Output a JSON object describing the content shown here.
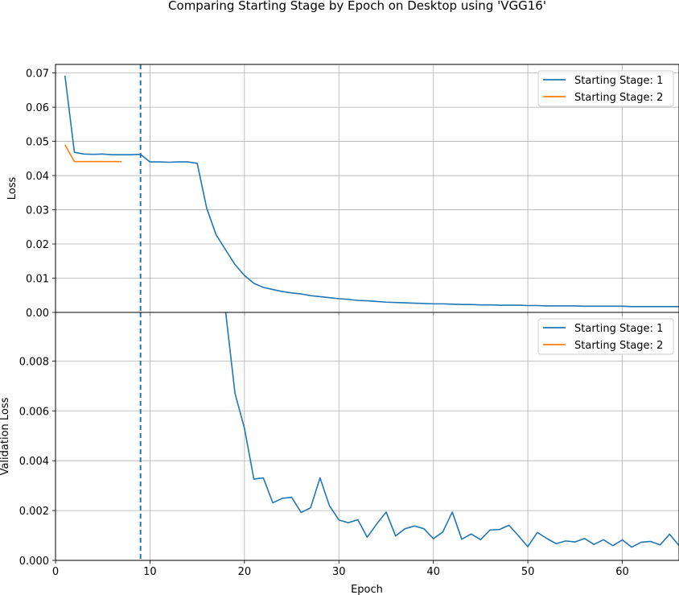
{
  "figure": {
    "title": "Comparing Starting Stage by Epoch on Desktop using 'VGG16'",
    "xlabel": "Epoch"
  },
  "colors": {
    "series1": "#1f77b4",
    "series2": "#ff7f0e",
    "grid": "#b0b0b0",
    "vline": "#1f77b4"
  },
  "chart_data": [
    {
      "type": "line",
      "panel": "top",
      "title": "",
      "xlabel": "",
      "ylabel": "Loss",
      "xlim": [
        0,
        66
      ],
      "ylim": [
        0,
        0.0725
      ],
      "xticks": [
        0,
        10,
        20,
        30,
        40,
        50,
        60
      ],
      "yticks": [
        0.0,
        0.01,
        0.02,
        0.03,
        0.04,
        0.05,
        0.06,
        0.07
      ],
      "ytick_labels": [
        "0.00",
        "0.01",
        "0.02",
        "0.03",
        "0.04",
        "0.05",
        "0.06",
        "0.07"
      ],
      "grid": true,
      "legend_position": "upper-right",
      "vline_x": 9,
      "series": [
        {
          "name": "Starting Stage: 1",
          "color": "#1f77b4",
          "x": [
            1,
            2,
            3,
            4,
            5,
            6,
            7,
            8,
            9,
            10,
            11,
            12,
            13,
            14,
            15,
            16,
            17,
            18,
            19,
            20,
            21,
            22,
            23,
            24,
            25,
            26,
            27,
            28,
            29,
            30,
            31,
            32,
            33,
            34,
            35,
            36,
            37,
            38,
            39,
            40,
            41,
            42,
            43,
            44,
            45,
            46,
            47,
            48,
            49,
            50,
            51,
            52,
            53,
            54,
            55,
            56,
            57,
            58,
            59,
            60,
            61,
            62,
            63,
            64,
            65,
            66
          ],
          "values": [
            0.0692,
            0.0468,
            0.0463,
            0.0462,
            0.0463,
            0.0461,
            0.0461,
            0.0461,
            0.0462,
            0.044,
            0.044,
            0.0439,
            0.044,
            0.044,
            0.0436,
            0.0305,
            0.0227,
            0.0183,
            0.014,
            0.0108,
            0.0085,
            0.0073,
            0.0067,
            0.0061,
            0.0057,
            0.0054,
            0.0049,
            0.0046,
            0.0043,
            0.004,
            0.0038,
            0.0035,
            0.0034,
            0.0032,
            0.003,
            0.0029,
            0.0028,
            0.0027,
            0.0026,
            0.0025,
            0.0025,
            0.0024,
            0.0023,
            0.0023,
            0.0022,
            0.0022,
            0.0021,
            0.0021,
            0.0021,
            0.002,
            0.002,
            0.0019,
            0.0019,
            0.0019,
            0.0019,
            0.0018,
            0.0018,
            0.0018,
            0.0018,
            0.0018,
            0.0017,
            0.0017,
            0.0017,
            0.0017,
            0.0017,
            0.0017
          ]
        },
        {
          "name": "Starting Stage: 2",
          "color": "#ff7f0e",
          "x": [
            1,
            2,
            3,
            4,
            5,
            6,
            7
          ],
          "values": [
            0.049,
            0.0441,
            0.0441,
            0.0441,
            0.0441,
            0.0441,
            0.0441
          ]
        }
      ]
    },
    {
      "type": "line",
      "panel": "bottom",
      "title": "",
      "xlabel": "Epoch",
      "ylabel": "Validation Loss",
      "xlim": [
        0,
        66
      ],
      "ylim": [
        0,
        0.00995
      ],
      "xticks": [
        0,
        10,
        20,
        30,
        40,
        50,
        60
      ],
      "yticks": [
        0.0,
        0.002,
        0.004,
        0.006,
        0.008
      ],
      "ytick_labels": [
        "0.000",
        "0.002",
        "0.004",
        "0.006",
        "0.008"
      ],
      "grid": true,
      "legend_position": "upper-right",
      "vline_x": 9,
      "series": [
        {
          "name": "Starting Stage: 1",
          "color": "#1f77b4",
          "x": [
            18,
            19,
            20,
            21,
            22,
            23,
            24,
            25,
            26,
            27,
            28,
            29,
            30,
            31,
            32,
            33,
            34,
            35,
            36,
            37,
            38,
            39,
            40,
            41,
            42,
            43,
            44,
            45,
            46,
            47,
            48,
            49,
            50,
            51,
            52,
            53,
            54,
            55,
            56,
            57,
            58,
            59,
            60,
            61,
            62,
            63,
            64,
            65,
            66
          ],
          "values": [
            0.01,
            0.0067,
            0.0053,
            0.00326,
            0.00331,
            0.00231,
            0.00249,
            0.00253,
            0.00192,
            0.00211,
            0.00331,
            0.00219,
            0.00162,
            0.00151,
            0.00163,
            0.00093,
            0.00146,
            0.00194,
            0.00098,
            0.00127,
            0.00138,
            0.00127,
            0.00087,
            0.00114,
            0.00194,
            0.00085,
            0.00106,
            0.00083,
            0.00122,
            0.00124,
            0.00141,
            0.00099,
            0.00055,
            0.00112,
            0.00088,
            0.00067,
            0.00078,
            0.00074,
            0.00088,
            0.00064,
            0.00083,
            0.00059,
            0.00082,
            0.00053,
            0.00073,
            0.00076,
            0.00062,
            0.00105,
            0.0006
          ]
        },
        {
          "name": "Starting Stage: 2",
          "color": "#ff7f0e",
          "x": [],
          "values": []
        }
      ]
    }
  ]
}
